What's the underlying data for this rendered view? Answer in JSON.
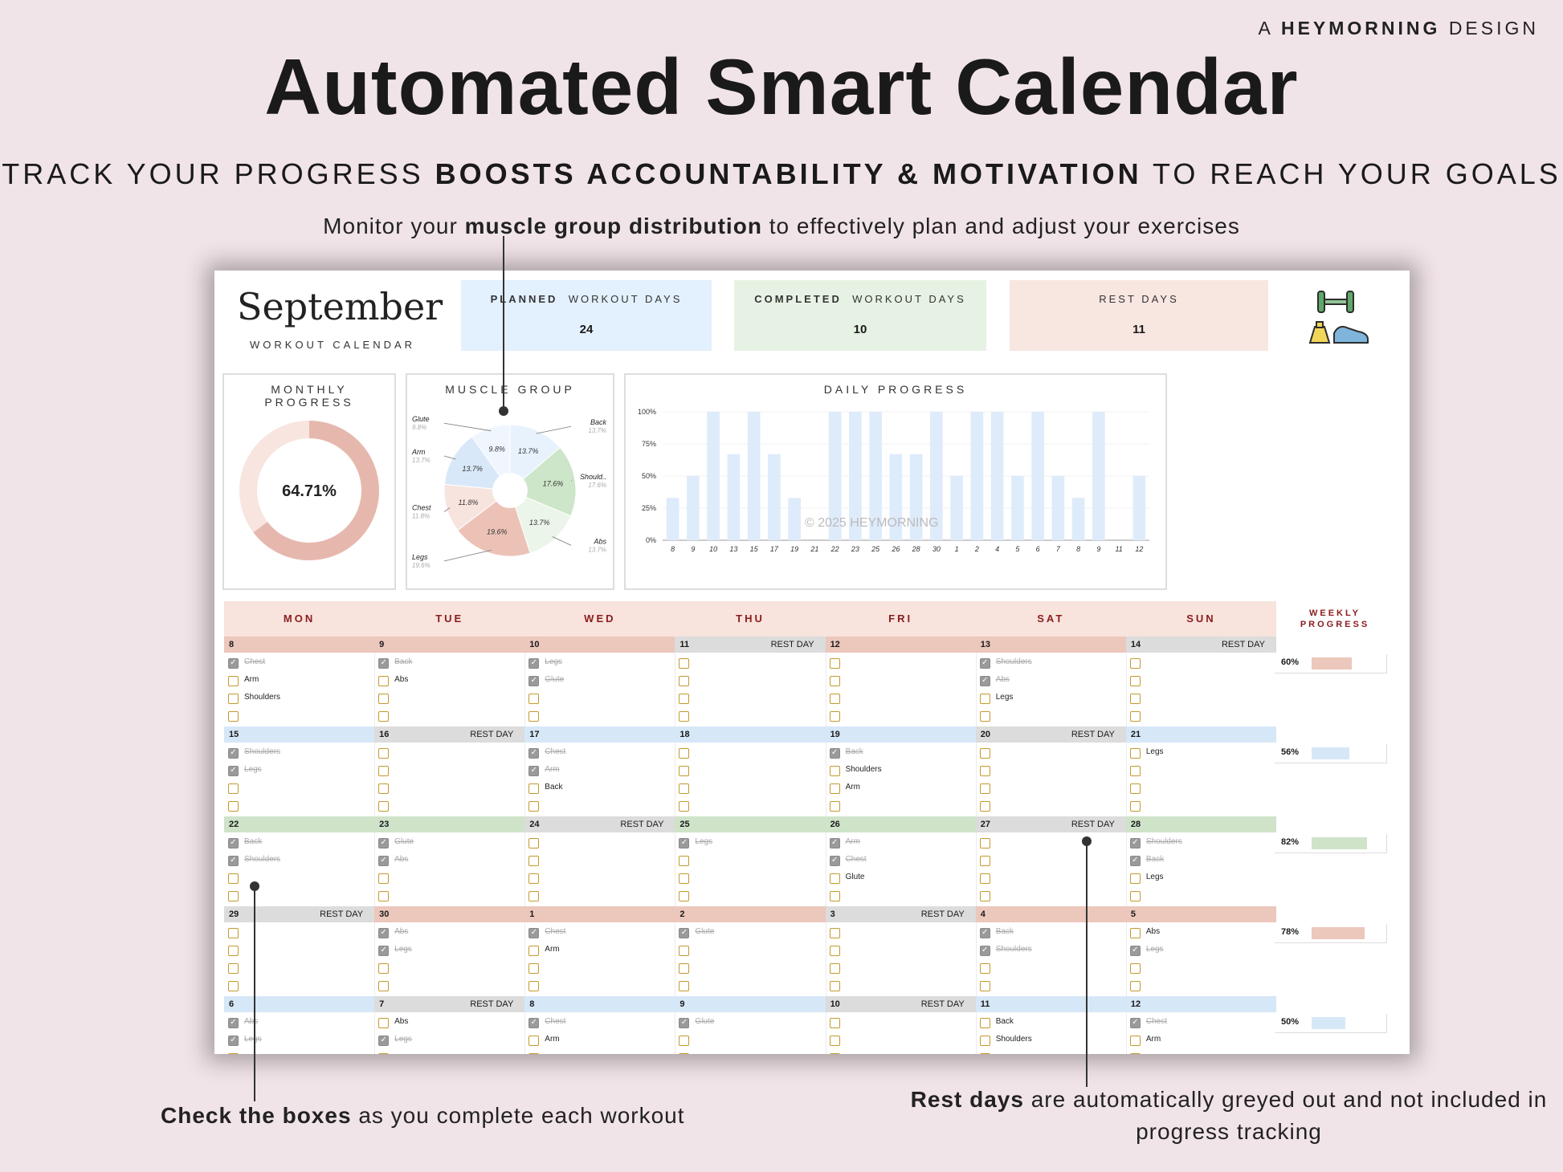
{
  "brand": {
    "prefix": "A",
    "name": "HEYMORNING",
    "suffix": "DESIGN"
  },
  "title": "Automated Smart Calendar",
  "subtitle": {
    "pre": "TRACK YOUR PROGRESS",
    "bold": "BOOSTS ACCOUNTABILITY & MOTIVATION",
    "post": "TO REACH YOUR GOALS"
  },
  "callouts": {
    "muscle": {
      "pre": "Monitor your",
      "bold": "muscle group distribution",
      "post": "to effectively plan and adjust your exercises"
    },
    "check": {
      "bold": "Check the boxes",
      "post": "as you complete each workout"
    },
    "rest": {
      "bold": "Rest days",
      "post": "are automatically greyed out and not included in progress tracking"
    }
  },
  "sheet": {
    "month": "September",
    "month_sub": "WORKOUT CALENDAR",
    "stats": [
      {
        "bold": "PLANNED",
        "rest": "WORKOUT DAYS",
        "value": "24",
        "color": "#e3f0fd"
      },
      {
        "bold": "COMPLETED",
        "rest": "WORKOUT DAYS",
        "value": "10",
        "color": "#e6f2e3"
      },
      {
        "bold": "",
        "rest": "REST DAYS",
        "value": "11",
        "color": "#f8e6e1"
      }
    ],
    "monthly_progress": {
      "title": "MONTHLY PROGRESS",
      "value": "64.71%",
      "fraction": 0.6471
    },
    "muscle_group": {
      "title": "MUSCLE GROUP",
      "slices": [
        {
          "label": "Back",
          "pct": "13.7%",
          "value": 13.7,
          "color": "#e8f2fd"
        },
        {
          "label": "Should..",
          "pct": "17.6%",
          "value": 17.6,
          "color": "#cde5c8"
        },
        {
          "label": "Abs",
          "pct": "13.7%",
          "value": 13.7,
          "color": "#ebf5e9"
        },
        {
          "label": "Legs",
          "pct": "19.6%",
          "value": 19.6,
          "color": "#ecc2b7"
        },
        {
          "label": "Chest",
          "pct": "11.8%",
          "value": 11.8,
          "color": "#f7e4df"
        },
        {
          "label": "Arm",
          "pct": "13.7%",
          "value": 13.7,
          "color": "#d9e8f9"
        },
        {
          "label": "Glute",
          "pct": "9.8%",
          "value": 9.8,
          "color": "#f0f6fe"
        }
      ]
    },
    "watermark": "© 2025 HEYMORNING",
    "calendar": {
      "day_names": [
        "MON",
        "TUE",
        "WED",
        "THU",
        "FRI",
        "SAT",
        "SUN"
      ],
      "rest_label": "REST DAY",
      "weekly_title": "WEEKLY PROGRESS",
      "weeks": [
        {
          "color": "#ecc7bc",
          "days": [
            {
              "num": "8",
              "items": [
                {
                  "t": "Chest",
                  "c": true
                },
                {
                  "t": "Arm"
                },
                {
                  "t": "Shoulders"
                },
                {
                  "t": ""
                }
              ]
            },
            {
              "num": "9",
              "items": [
                {
                  "t": "Back",
                  "c": true
                },
                {
                  "t": "Abs"
                },
                {
                  "t": ""
                },
                {
                  "t": ""
                }
              ]
            },
            {
              "num": "10",
              "items": [
                {
                  "t": "Legs",
                  "c": true
                },
                {
                  "t": "Glute",
                  "c": true
                },
                {
                  "t": ""
                },
                {
                  "t": ""
                }
              ]
            },
            {
              "num": "11",
              "rest": true,
              "items": [
                {
                  "t": ""
                },
                {
                  "t": ""
                },
                {
                  "t": ""
                },
                {
                  "t": ""
                }
              ]
            },
            {
              "num": "12",
              "items": [
                {
                  "t": ""
                },
                {
                  "t": ""
                },
                {
                  "t": ""
                },
                {
                  "t": ""
                }
              ]
            },
            {
              "num": "13",
              "items": [
                {
                  "t": "Shoulders",
                  "c": true
                },
                {
                  "t": "Abs",
                  "c": true
                },
                {
                  "t": "Legs"
                },
                {
                  "t": ""
                }
              ]
            },
            {
              "num": "14",
              "rest": true,
              "items": [
                {
                  "t": ""
                },
                {
                  "t": ""
                },
                {
                  "t": ""
                },
                {
                  "t": ""
                }
              ]
            }
          ],
          "pct": "60%",
          "fraction": 0.6
        },
        {
          "color": "#d6e7f7",
          "days": [
            {
              "num": "15",
              "items": [
                {
                  "t": "Shoulders",
                  "c": true
                },
                {
                  "t": "Legs",
                  "c": true
                },
                {
                  "t": ""
                },
                {
                  "t": ""
                }
              ]
            },
            {
              "num": "16",
              "rest": true,
              "items": [
                {
                  "t": ""
                },
                {
                  "t": ""
                },
                {
                  "t": ""
                },
                {
                  "t": ""
                }
              ]
            },
            {
              "num": "17",
              "items": [
                {
                  "t": "Chest",
                  "c": true
                },
                {
                  "t": "Arm",
                  "c": true
                },
                {
                  "t": "Back"
                },
                {
                  "t": ""
                }
              ]
            },
            {
              "num": "18",
              "items": [
                {
                  "t": ""
                },
                {
                  "t": ""
                },
                {
                  "t": ""
                },
                {
                  "t": ""
                }
              ]
            },
            {
              "num": "19",
              "items": [
                {
                  "t": "Back",
                  "c": true
                },
                {
                  "t": "Shoulders"
                },
                {
                  "t": "Arm"
                },
                {
                  "t": ""
                }
              ]
            },
            {
              "num": "20",
              "rest": true,
              "items": [
                {
                  "t": ""
                },
                {
                  "t": ""
                },
                {
                  "t": ""
                },
                {
                  "t": ""
                }
              ]
            },
            {
              "num": "21",
              "items": [
                {
                  "t": "Legs"
                },
                {
                  "t": ""
                },
                {
                  "t": ""
                },
                {
                  "t": ""
                }
              ]
            }
          ],
          "pct": "56%",
          "fraction": 0.56
        },
        {
          "color": "#cfe3c9",
          "days": [
            {
              "num": "22",
              "items": [
                {
                  "t": "Back",
                  "c": true
                },
                {
                  "t": "Shoulders",
                  "c": true
                },
                {
                  "t": ""
                },
                {
                  "t": ""
                }
              ]
            },
            {
              "num": "23",
              "items": [
                {
                  "t": "Glute",
                  "c": true
                },
                {
                  "t": "Abs",
                  "c": true
                },
                {
                  "t": ""
                },
                {
                  "t": ""
                }
              ]
            },
            {
              "num": "24",
              "rest": true,
              "items": [
                {
                  "t": ""
                },
                {
                  "t": ""
                },
                {
                  "t": ""
                },
                {
                  "t": ""
                }
              ]
            },
            {
              "num": "25",
              "items": [
                {
                  "t": "Legs",
                  "c": true
                },
                {
                  "t": ""
                },
                {
                  "t": ""
                },
                {
                  "t": ""
                }
              ]
            },
            {
              "num": "26",
              "items": [
                {
                  "t": "Arm",
                  "c": true
                },
                {
                  "t": "Chest",
                  "c": true
                },
                {
                  "t": "Glute"
                },
                {
                  "t": ""
                }
              ]
            },
            {
              "num": "27",
              "rest": true,
              "items": [
                {
                  "t": ""
                },
                {
                  "t": ""
                },
                {
                  "t": ""
                },
                {
                  "t": ""
                }
              ]
            },
            {
              "num": "28",
              "items": [
                {
                  "t": "Shoulders",
                  "c": true
                },
                {
                  "t": "Back",
                  "c": true
                },
                {
                  "t": "Legs"
                },
                {
                  "t": ""
                }
              ]
            }
          ],
          "pct": "82%",
          "fraction": 0.82
        },
        {
          "color": "#ecc7bc",
          "days": [
            {
              "num": "29",
              "rest": true,
              "items": [
                {
                  "t": ""
                },
                {
                  "t": ""
                },
                {
                  "t": ""
                },
                {
                  "t": ""
                }
              ]
            },
            {
              "num": "30",
              "items": [
                {
                  "t": "Abs",
                  "c": true
                },
                {
                  "t": "Legs",
                  "c": true
                },
                {
                  "t": ""
                },
                {
                  "t": ""
                }
              ]
            },
            {
              "num": "1",
              "items": [
                {
                  "t": "Chest",
                  "c": true
                },
                {
                  "t": "Arm"
                },
                {
                  "t": ""
                },
                {
                  "t": ""
                }
              ]
            },
            {
              "num": "2",
              "items": [
                {
                  "t": "Glute",
                  "c": true
                },
                {
                  "t": ""
                },
                {
                  "t": ""
                },
                {
                  "t": ""
                }
              ]
            },
            {
              "num": "3",
              "rest": true,
              "items": [
                {
                  "t": ""
                },
                {
                  "t": ""
                },
                {
                  "t": ""
                },
                {
                  "t": ""
                }
              ]
            },
            {
              "num": "4",
              "items": [
                {
                  "t": "Back",
                  "c": true
                },
                {
                  "t": "Shoulders",
                  "c": true
                },
                {
                  "t": ""
                },
                {
                  "t": ""
                }
              ]
            },
            {
              "num": "5",
              "items": [
                {
                  "t": "Abs"
                },
                {
                  "t": "Legs",
                  "c": true
                },
                {
                  "t": ""
                },
                {
                  "t": ""
                }
              ]
            }
          ],
          "pct": "78%",
          "fraction": 0.78
        },
        {
          "color": "#d6e7f7",
          "days": [
            {
              "num": "6",
              "items": [
                {
                  "t": "Abs",
                  "c": true
                },
                {
                  "t": "Legs",
                  "c": true
                },
                {
                  "t": ""
                },
                {
                  "t": ""
                }
              ]
            },
            {
              "num": "7",
              "rest": true,
              "items": [
                {
                  "t": "Abs"
                },
                {
                  "t": "Legs",
                  "c": true
                },
                {
                  "t": ""
                },
                {
                  "t": ""
                }
              ]
            },
            {
              "num": "8",
              "items": [
                {
                  "t": "Chest",
                  "c": true
                },
                {
                  "t": "Arm"
                },
                {
                  "t": ""
                },
                {
                  "t": ""
                }
              ]
            },
            {
              "num": "9",
              "items": [
                {
                  "t": "Glute",
                  "c": true
                },
                {
                  "t": ""
                },
                {
                  "t": ""
                },
                {
                  "t": ""
                }
              ]
            },
            {
              "num": "10",
              "rest": true,
              "items": [
                {
                  "t": ""
                },
                {
                  "t": ""
                },
                {
                  "t": ""
                },
                {
                  "t": ""
                }
              ]
            },
            {
              "num": "11",
              "items": [
                {
                  "t": "Back"
                },
                {
                  "t": "Shoulders"
                },
                {
                  "t": ""
                },
                {
                  "t": ""
                }
              ]
            },
            {
              "num": "12",
              "items": [
                {
                  "t": "Chest",
                  "c": true
                },
                {
                  "t": "Arm"
                },
                {
                  "t": ""
                },
                {
                  "t": ""
                }
              ]
            }
          ],
          "pct": "50%",
          "fraction": 0.5
        }
      ]
    }
  },
  "chart_data": {
    "type": "bar",
    "title": "DAILY PROGRESS",
    "categories": [
      "8",
      "9",
      "10",
      "13",
      "15",
      "17",
      "19",
      "21",
      "22",
      "23",
      "25",
      "26",
      "28",
      "30",
      "1",
      "2",
      "4",
      "5",
      "6",
      "7",
      "8",
      "9",
      "11",
      "12"
    ],
    "values": [
      33,
      50,
      100,
      67,
      100,
      67,
      33,
      0,
      100,
      100,
      100,
      67,
      67,
      100,
      50,
      100,
      100,
      50,
      100,
      50,
      33,
      100,
      0,
      50
    ],
    "yticks": [
      "0%",
      "25%",
      "50%",
      "75%",
      "100%"
    ],
    "ylim": [
      0,
      100
    ],
    "color": "#deebfb"
  }
}
